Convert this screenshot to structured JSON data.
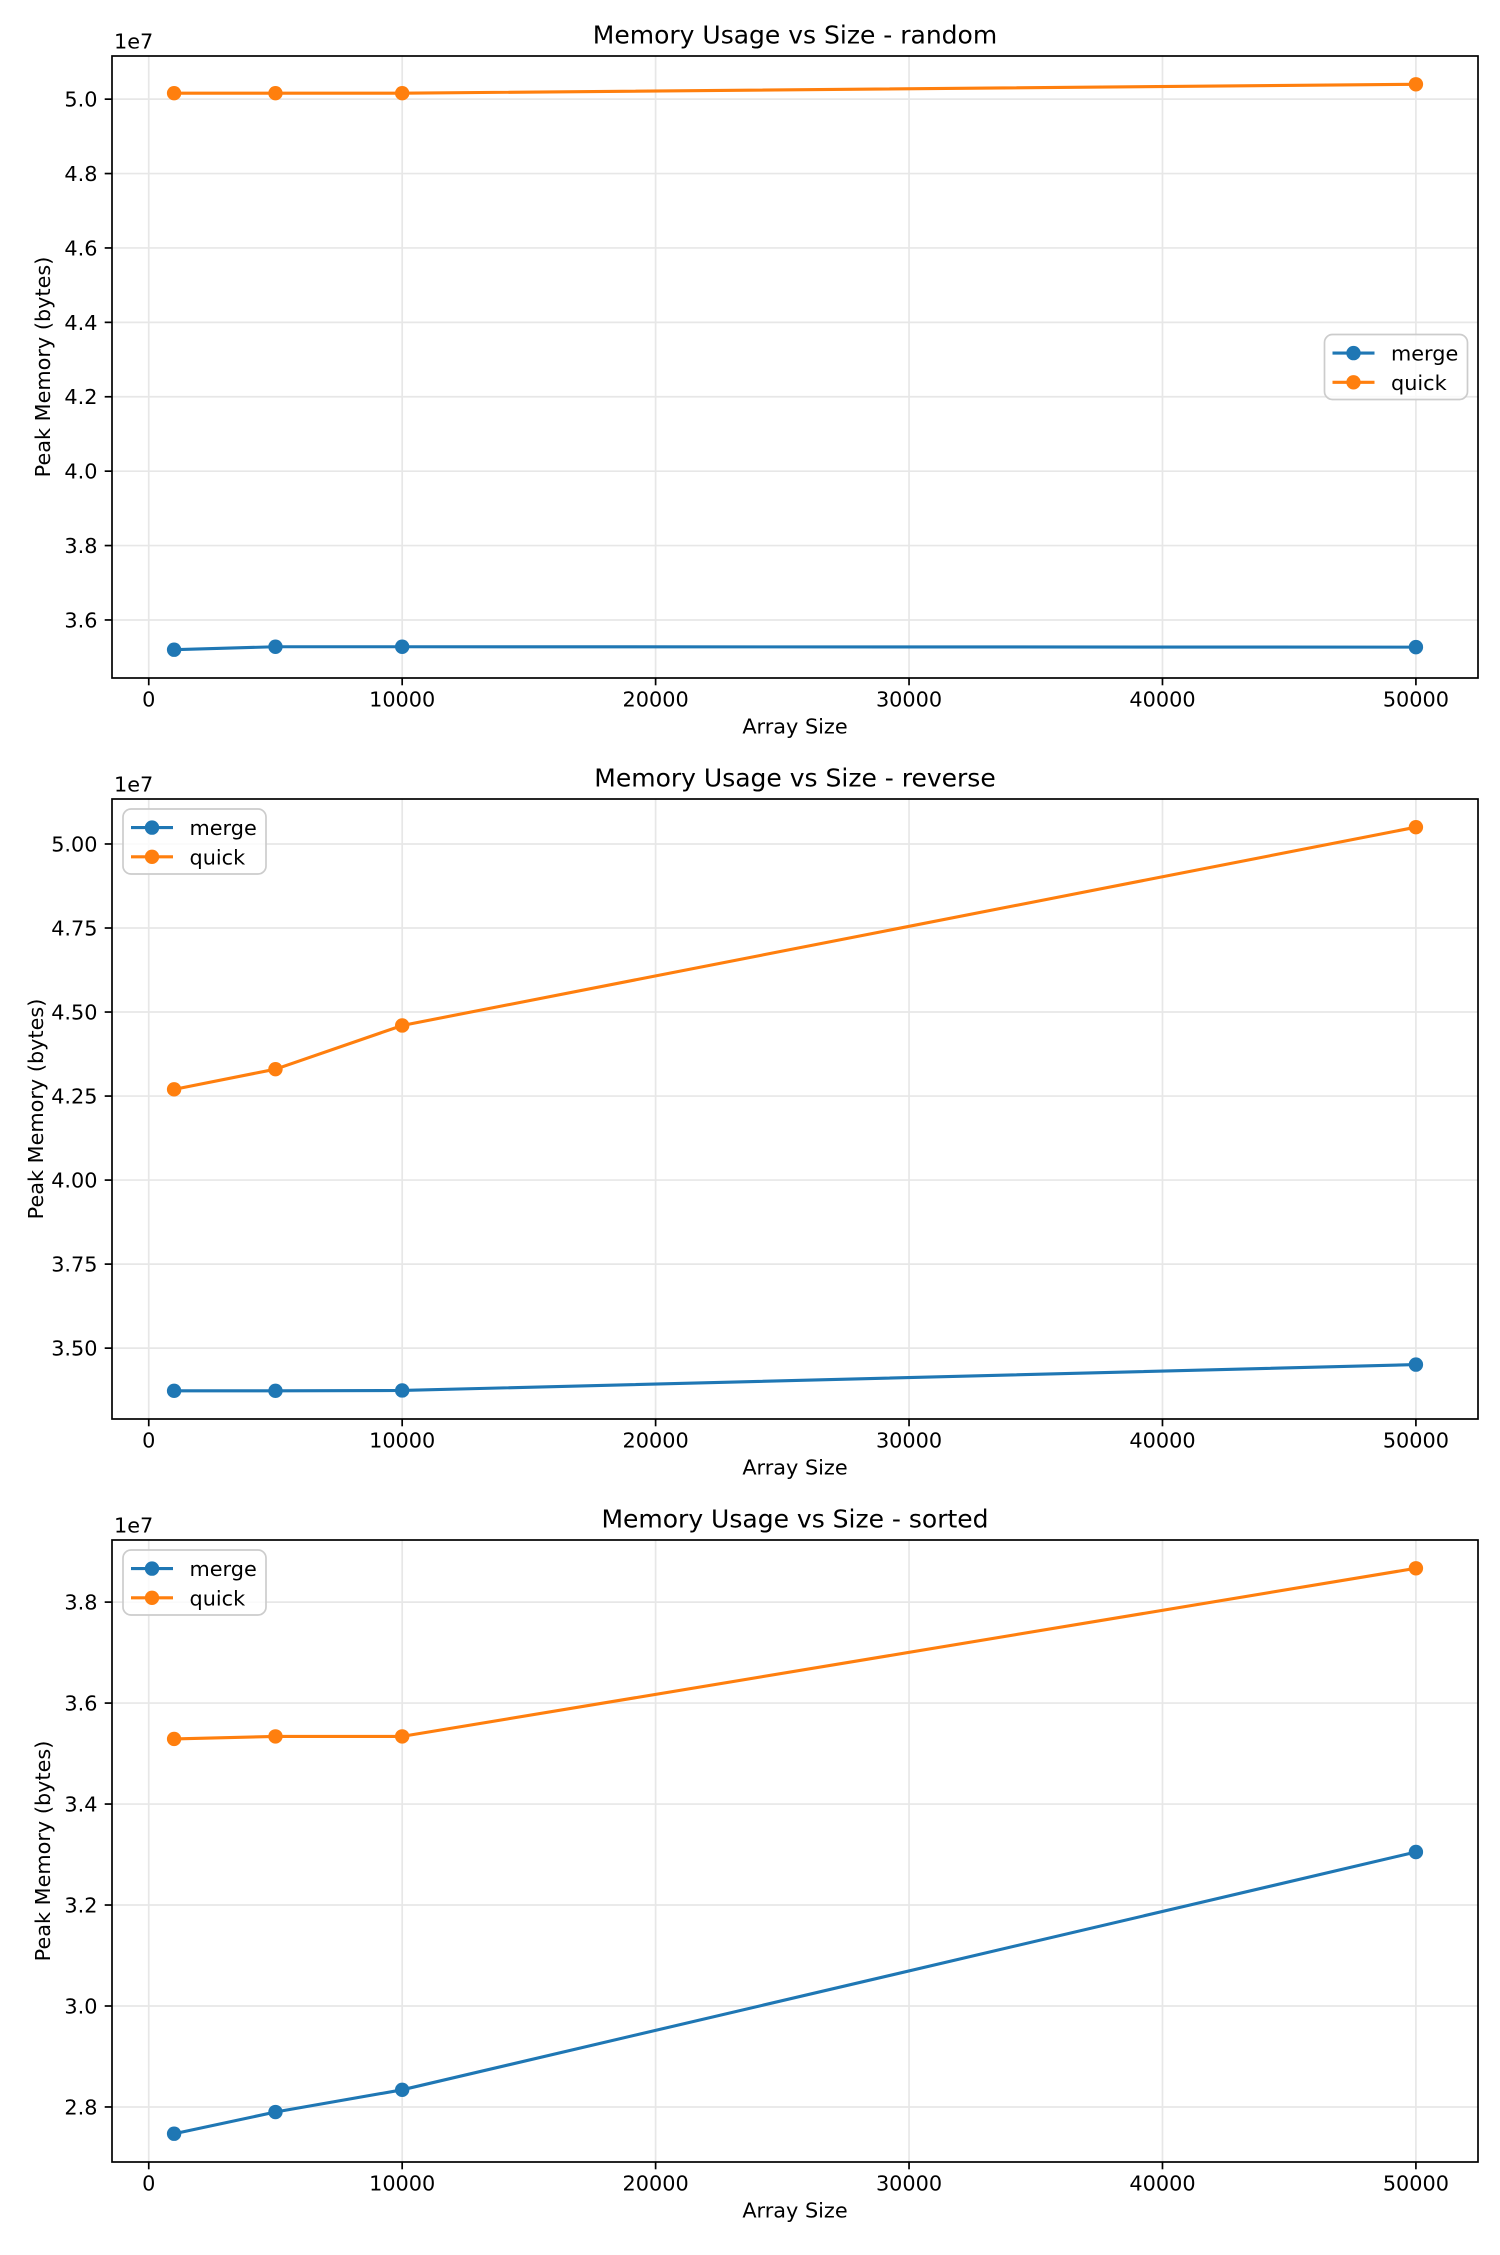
{
  "figure": {
    "background": "#ffffff"
  },
  "style": {
    "grid_color": "#e7e7e7",
    "spine_color": "#000000",
    "text_color": "#000000",
    "legend_edge_color": "#cccccc",
    "legend_face_color": "#ffffff",
    "series_colors": {
      "merge": "#1f77b4",
      "quick": "#ff7f0e"
    }
  },
  "chart_data": [
    {
      "type": "line",
      "title": "Memory Usage vs Size - random",
      "xlabel": "Array Size",
      "ylabel": "Peak Memory (bytes)",
      "y_offset_label": "1e7",
      "x": [
        1000,
        5000,
        10000,
        50000
      ],
      "series": [
        {
          "name": "merge",
          "color": "#1f77b4",
          "values": [
            35200000,
            35280000,
            35280000,
            35270000
          ]
        },
        {
          "name": "quick",
          "color": "#ff7f0e",
          "values": [
            50160000,
            50160000,
            50160000,
            50400000
          ]
        }
      ],
      "xlim": [
        -1450,
        52450
      ],
      "ylim": [
        34440000,
        51160000
      ],
      "xticks": [
        {
          "value": 0,
          "label": "0"
        },
        {
          "value": 10000,
          "label": "10000"
        },
        {
          "value": 20000,
          "label": "20000"
        },
        {
          "value": 30000,
          "label": "30000"
        },
        {
          "value": 40000,
          "label": "40000"
        },
        {
          "value": 50000,
          "label": "50000"
        }
      ],
      "yticks": [
        {
          "value": 36000000,
          "label": "3.6"
        },
        {
          "value": 38000000,
          "label": "3.8"
        },
        {
          "value": 40000000,
          "label": "4.0"
        },
        {
          "value": 42000000,
          "label": "4.2"
        },
        {
          "value": 44000000,
          "label": "4.4"
        },
        {
          "value": 46000000,
          "label": "4.6"
        },
        {
          "value": 48000000,
          "label": "4.8"
        },
        {
          "value": 50000000,
          "label": "5.0"
        }
      ],
      "grid": true,
      "legend": {
        "position": "center-right",
        "entries": [
          "merge",
          "quick"
        ]
      }
    },
    {
      "type": "line",
      "title": "Memory Usage vs Size - reverse",
      "xlabel": "Array Size",
      "ylabel": "Peak Memory (bytes)",
      "y_offset_label": "1e7",
      "x": [
        1000,
        5000,
        10000,
        50000
      ],
      "series": [
        {
          "name": "merge",
          "color": "#1f77b4",
          "values": [
            33730000,
            33730000,
            33740000,
            34510000
          ]
        },
        {
          "name": "quick",
          "color": "#ff7f0e",
          "values": [
            42700000,
            43300000,
            44600000,
            50500000
          ]
        }
      ],
      "xlim": [
        -1450,
        52450
      ],
      "ylim": [
        32891500,
        51338500
      ],
      "xticks": [
        {
          "value": 0,
          "label": "0"
        },
        {
          "value": 10000,
          "label": "10000"
        },
        {
          "value": 20000,
          "label": "20000"
        },
        {
          "value": 30000,
          "label": "30000"
        },
        {
          "value": 40000,
          "label": "40000"
        },
        {
          "value": 50000,
          "label": "50000"
        }
      ],
      "yticks": [
        {
          "value": 35000000,
          "label": "3.50"
        },
        {
          "value": 37500000,
          "label": "3.75"
        },
        {
          "value": 40000000,
          "label": "4.00"
        },
        {
          "value": 42500000,
          "label": "4.25"
        },
        {
          "value": 45000000,
          "label": "4.50"
        },
        {
          "value": 47500000,
          "label": "4.75"
        },
        {
          "value": 50000000,
          "label": "5.00"
        }
      ],
      "grid": true,
      "legend": {
        "position": "upper-left",
        "entries": [
          "merge",
          "quick"
        ]
      }
    },
    {
      "type": "line",
      "title": "Memory Usage vs Size - sorted",
      "xlabel": "Array Size",
      "ylabel": "Peak Memory (bytes)",
      "y_offset_label": "1e7",
      "x": [
        1000,
        5000,
        10000,
        50000
      ],
      "series": [
        {
          "name": "merge",
          "color": "#1f77b4",
          "values": [
            27470000,
            27900000,
            28340000,
            33050000
          ]
        },
        {
          "name": "quick",
          "color": "#ff7f0e",
          "values": [
            35290000,
            35340000,
            35340000,
            38670000
          ]
        }
      ],
      "xlim": [
        -1450,
        52450
      ],
      "ylim": [
        26910000,
        39230000
      ],
      "xticks": [
        {
          "value": 0,
          "label": "0"
        },
        {
          "value": 10000,
          "label": "10000"
        },
        {
          "value": 20000,
          "label": "20000"
        },
        {
          "value": 30000,
          "label": "30000"
        },
        {
          "value": 40000,
          "label": "40000"
        },
        {
          "value": 50000,
          "label": "50000"
        }
      ],
      "yticks": [
        {
          "value": 28000000,
          "label": "2.8"
        },
        {
          "value": 30000000,
          "label": "3.0"
        },
        {
          "value": 32000000,
          "label": "3.2"
        },
        {
          "value": 34000000,
          "label": "3.4"
        },
        {
          "value": 36000000,
          "label": "3.6"
        },
        {
          "value": 38000000,
          "label": "3.8"
        }
      ],
      "grid": true,
      "legend": {
        "position": "upper-left",
        "entries": [
          "merge",
          "quick"
        ]
      }
    }
  ]
}
